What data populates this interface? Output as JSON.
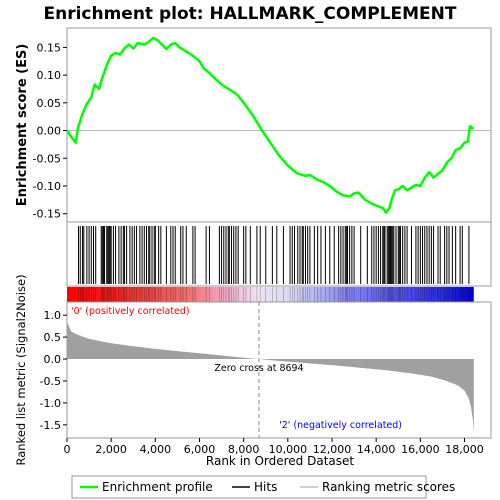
{
  "chart_data": {
    "type": "line",
    "title": "Enrichment plot: HALLMARK_COMPLEMENT",
    "es_panel": {
      "ylabel": "Enrichment score (ES)",
      "ylim": [
        -0.165,
        0.185
      ],
      "yticks": [
        -0.15,
        -0.1,
        -0.05,
        0.0,
        0.05,
        0.1,
        0.15
      ],
      "ytick_labels": [
        "-0.15",
        "-0.10",
        "-0.05",
        "0.00",
        "0.05",
        "0.10",
        "0.15"
      ],
      "series": [
        {
          "name": "Enrichment profile",
          "color": "#00ff00",
          "points": [
            [
              0,
              0.0
            ],
            [
              200,
              -0.012
            ],
            [
              400,
              -0.022
            ],
            [
              500,
              0.005
            ],
            [
              700,
              0.03
            ],
            [
              900,
              0.048
            ],
            [
              1100,
              0.06
            ],
            [
              1250,
              0.083
            ],
            [
              1450,
              0.075
            ],
            [
              1600,
              0.095
            ],
            [
              1800,
              0.118
            ],
            [
              2000,
              0.135
            ],
            [
              2200,
              0.14
            ],
            [
              2400,
              0.137
            ],
            [
              2600,
              0.148
            ],
            [
              2800,
              0.155
            ],
            [
              3000,
              0.148
            ],
            [
              3200,
              0.158
            ],
            [
              3500,
              0.155
            ],
            [
              3700,
              0.16
            ],
            [
              3900,
              0.167
            ],
            [
              4100,
              0.163
            ],
            [
              4300,
              0.155
            ],
            [
              4500,
              0.147
            ],
            [
              4700,
              0.155
            ],
            [
              4900,
              0.158
            ],
            [
              5100,
              0.15
            ],
            [
              5300,
              0.145
            ],
            [
              5500,
              0.14
            ],
            [
              5800,
              0.132
            ],
            [
              6000,
              0.125
            ],
            [
              6200,
              0.112
            ],
            [
              6500,
              0.102
            ],
            [
              6800,
              0.09
            ],
            [
              7100,
              0.08
            ],
            [
              7400,
              0.073
            ],
            [
              7700,
              0.065
            ],
            [
              8000,
              0.05
            ],
            [
              8400,
              0.028
            ],
            [
              8800,
              0.002
            ],
            [
              9200,
              -0.022
            ],
            [
              9600,
              -0.045
            ],
            [
              10000,
              -0.063
            ],
            [
              10400,
              -0.077
            ],
            [
              10800,
              -0.082
            ],
            [
              11000,
              -0.08
            ],
            [
              11300,
              -0.088
            ],
            [
              11600,
              -0.093
            ],
            [
              11900,
              -0.1
            ],
            [
              12200,
              -0.11
            ],
            [
              12500,
              -0.117
            ],
            [
              12800,
              -0.119
            ],
            [
              13000,
              -0.113
            ],
            [
              13200,
              -0.112
            ],
            [
              13500,
              -0.125
            ],
            [
              13800,
              -0.132
            ],
            [
              14100,
              -0.137
            ],
            [
              14300,
              -0.14
            ],
            [
              14450,
              -0.148
            ],
            [
              14600,
              -0.14
            ],
            [
              14700,
              -0.125
            ],
            [
              14850,
              -0.108
            ],
            [
              15000,
              -0.106
            ],
            [
              15200,
              -0.1
            ],
            [
              15400,
              -0.108
            ],
            [
              15600,
              -0.103
            ],
            [
              15800,
              -0.098
            ],
            [
              16000,
              -0.1
            ],
            [
              16200,
              -0.085
            ],
            [
              16400,
              -0.075
            ],
            [
              16600,
              -0.085
            ],
            [
              16800,
              -0.078
            ],
            [
              17000,
              -0.072
            ],
            [
              17200,
              -0.058
            ],
            [
              17400,
              -0.05
            ],
            [
              17600,
              -0.035
            ],
            [
              17800,
              -0.032
            ],
            [
              18000,
              -0.022
            ],
            [
              18150,
              -0.02
            ],
            [
              18250,
              0.008
            ],
            [
              18400,
              0.003
            ]
          ]
        }
      ]
    },
    "hits_panel": {
      "label": "Hits",
      "hit_ranks": [
        520,
        600,
        700,
        760,
        900,
        1000,
        1100,
        1200,
        1300,
        1550,
        1600,
        1650,
        1700,
        1800,
        1850,
        1900,
        1950,
        2000,
        2100,
        2200,
        2350,
        2450,
        2550,
        2600,
        2700,
        2850,
        2950,
        3050,
        3150,
        3300,
        3400,
        3500,
        3600,
        3700,
        3750,
        3850,
        3950,
        4000,
        4150,
        4250,
        4500,
        4700,
        4800,
        4900,
        5150,
        5250,
        5400,
        5700,
        5800,
        6300,
        6450,
        6900,
        7000,
        7100,
        7200,
        7300,
        7350,
        7450,
        7550,
        7650,
        7750,
        8000,
        8100,
        8300,
        8600,
        8750,
        9000,
        9300,
        9500,
        9800,
        10100,
        10200,
        10300,
        10450,
        10550,
        10650,
        10700,
        10800,
        10900,
        11000,
        11200,
        11350,
        11500,
        11700,
        11900,
        12100,
        12300,
        12400,
        12500,
        12600,
        12650,
        12700,
        12800,
        12900,
        13000,
        13300,
        13600,
        13800,
        13900,
        14000,
        14100,
        14200,
        14300,
        14350,
        14400,
        14500,
        14550,
        14600,
        14650,
        14700,
        14750,
        14800,
        14900,
        15000,
        15050,
        15100,
        15200,
        15300,
        15400,
        15600,
        15800,
        15900,
        16000,
        16100,
        16200,
        16300,
        16400,
        16500,
        16600,
        16800,
        16900,
        17100,
        17200,
        17300,
        17450,
        17600,
        17800,
        17900,
        18200
      ]
    },
    "metric_panel": {
      "ylabel": "Ranked list metric (Signal2Noise)",
      "ylim": [
        -1.8,
        1.3
      ],
      "yticks": [
        1.0,
        0.5,
        0.0,
        -0.5,
        -1.0,
        -1.5
      ],
      "ytick_labels": [
        "1.0",
        "0.5",
        "0.0",
        "-0.5",
        "-1.0",
        "-1.5"
      ],
      "curve": [
        [
          0,
          0.85
        ],
        [
          200,
          0.62
        ],
        [
          500,
          0.55
        ],
        [
          1000,
          0.46
        ],
        [
          2000,
          0.36
        ],
        [
          3000,
          0.29
        ],
        [
          4000,
          0.23
        ],
        [
          5000,
          0.18
        ],
        [
          6000,
          0.13
        ],
        [
          7000,
          0.08
        ],
        [
          8000,
          0.03
        ],
        [
          8694,
          0.0
        ],
        [
          9500,
          -0.04
        ],
        [
          10500,
          -0.08
        ],
        [
          11500,
          -0.12
        ],
        [
          12500,
          -0.16
        ],
        [
          13500,
          -0.21
        ],
        [
          14500,
          -0.26
        ],
        [
          15500,
          -0.32
        ],
        [
          16500,
          -0.4
        ],
        [
          17200,
          -0.5
        ],
        [
          17700,
          -0.6
        ],
        [
          18000,
          -0.72
        ],
        [
          18200,
          -0.9
        ],
        [
          18300,
          -1.1
        ],
        [
          18380,
          -1.4
        ],
        [
          18420,
          -1.72
        ]
      ],
      "zero_cross_rank": 8694,
      "annotations": {
        "zero_cross": "Zero cross at 8694",
        "positive": "'0' (positively correlated)",
        "negative": "'2' (negatively correlated)"
      }
    },
    "x_axis": {
      "xlabel": "Rank in Ordered Dataset",
      "xlim": [
        0,
        19200
      ],
      "data_max": 18420,
      "xticks": [
        0,
        2000,
        4000,
        6000,
        8000,
        10000,
        12000,
        14000,
        16000,
        18000
      ],
      "xtick_labels": [
        "0",
        "2,000",
        "4,000",
        "6,000",
        "8,000",
        "10,000",
        "12,000",
        "14,000",
        "16,000",
        "18,000"
      ]
    },
    "legend": [
      {
        "label": "Enrichment profile",
        "color": "#00ff00",
        "icon": "green-line-icon"
      },
      {
        "label": "Hits",
        "color": "#000000",
        "icon": "black-line-icon"
      },
      {
        "label": "Ranking metric scores",
        "color": "#c0c0c0",
        "icon": "gray-line-icon"
      }
    ],
    "colors": {
      "positive": "#ff0000",
      "negative": "#0000ff",
      "metric_fill": "#a0a0a0",
      "zero_line": "#888888"
    }
  }
}
